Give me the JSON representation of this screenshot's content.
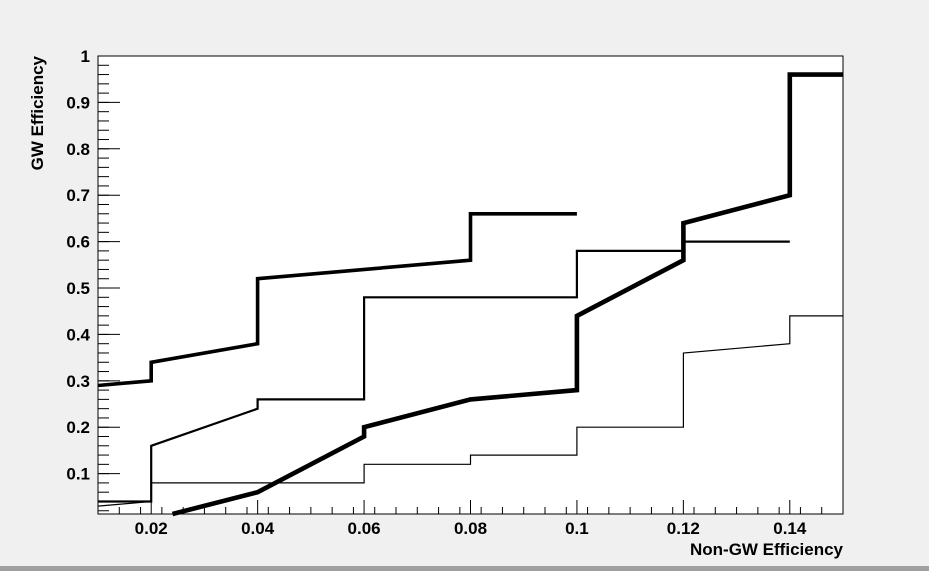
{
  "chart_data": {
    "type": "line",
    "step": true,
    "xlabel": "Non-GW Efficiency",
    "ylabel": "GW Efficiency",
    "xlim": [
      0.01,
      0.15
    ],
    "ylim": [
      0.013,
      1.0
    ],
    "xticks": [
      0.02,
      0.04,
      0.06,
      0.08,
      0.1,
      0.12,
      0.14
    ],
    "xtick_labels": [
      "0.02",
      "0.04",
      "0.06",
      "0.08",
      "0.1",
      "0.12",
      "0.14"
    ],
    "yticks": [
      0.1,
      0.2,
      0.3,
      0.4,
      0.5,
      0.6,
      0.7,
      0.8,
      0.9,
      1.0
    ],
    "ytick_labels": [
      "0.1",
      "0.2",
      "0.3",
      "0.4",
      "0.5",
      "0.6",
      "0.7",
      "0.8",
      "0.9",
      "1"
    ],
    "grid": false,
    "series": [
      {
        "style": "thick",
        "points": [
          [
            0.01,
            0.29
          ],
          [
            0.02,
            0.3
          ],
          [
            0.02,
            0.34
          ],
          [
            0.04,
            0.38
          ],
          [
            0.04,
            0.52
          ],
          [
            0.08,
            0.56
          ],
          [
            0.08,
            0.66
          ],
          [
            0.1,
            0.66
          ]
        ]
      },
      {
        "style": "medium",
        "points": [
          [
            0.01,
            0.04
          ],
          [
            0.02,
            0.04
          ],
          [
            0.02,
            0.16
          ],
          [
            0.04,
            0.24
          ],
          [
            0.04,
            0.26
          ],
          [
            0.06,
            0.26
          ],
          [
            0.06,
            0.48
          ],
          [
            0.1,
            0.48
          ],
          [
            0.1,
            0.58
          ],
          [
            0.12,
            0.58
          ],
          [
            0.12,
            0.6
          ],
          [
            0.14,
            0.6
          ]
        ]
      },
      {
        "style": "extra-thick",
        "points": [
          [
            0.024,
            0.013
          ],
          [
            0.04,
            0.06
          ],
          [
            0.06,
            0.18
          ],
          [
            0.06,
            0.2
          ],
          [
            0.08,
            0.26
          ],
          [
            0.1,
            0.28
          ],
          [
            0.1,
            0.44
          ],
          [
            0.12,
            0.56
          ],
          [
            0.12,
            0.64
          ],
          [
            0.14,
            0.7
          ],
          [
            0.14,
            0.96
          ],
          [
            0.15,
            0.96
          ]
        ]
      },
      {
        "style": "thin",
        "points": [
          [
            0.01,
            0.03
          ],
          [
            0.02,
            0.04
          ],
          [
            0.02,
            0.08
          ],
          [
            0.06,
            0.08
          ],
          [
            0.06,
            0.12
          ],
          [
            0.08,
            0.12
          ],
          [
            0.08,
            0.14
          ],
          [
            0.1,
            0.14
          ],
          [
            0.1,
            0.2
          ],
          [
            0.12,
            0.2
          ],
          [
            0.12,
            0.36
          ],
          [
            0.14,
            0.38
          ],
          [
            0.14,
            0.44
          ],
          [
            0.15,
            0.44
          ]
        ]
      }
    ]
  }
}
